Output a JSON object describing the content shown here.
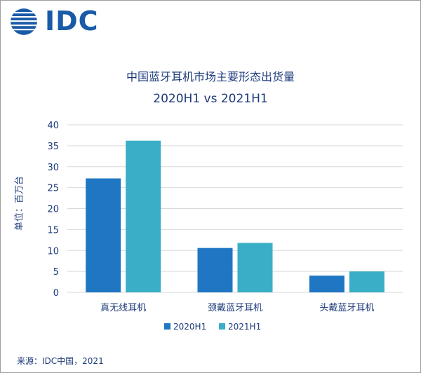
{
  "brand": {
    "logo_text": "IDC",
    "color": "#1a5ba8"
  },
  "chart_data": {
    "type": "bar",
    "title": "中国蓝牙耳机市场主要形态出货量",
    "subtitle": "2020H1 vs 2021H1",
    "ylabel": "单位：百万台",
    "xlabel": "",
    "categories": [
      "真无线耳机",
      "颈戴蓝牙耳机",
      "头戴蓝牙耳机"
    ],
    "series": [
      {
        "name": "2020H1",
        "values": [
          27.2,
          10.6,
          4.0
        ],
        "color": "#1f77c4"
      },
      {
        "name": "2021H1",
        "values": [
          36.2,
          11.8,
          5.0
        ],
        "color": "#3aaec6"
      }
    ],
    "ylim": [
      0,
      40
    ],
    "yticks": [
      0,
      5,
      10,
      15,
      20,
      25,
      30,
      35,
      40
    ],
    "grid": true,
    "legend": "bottom"
  },
  "footer": {
    "source": "来源：IDC中国，2021"
  }
}
